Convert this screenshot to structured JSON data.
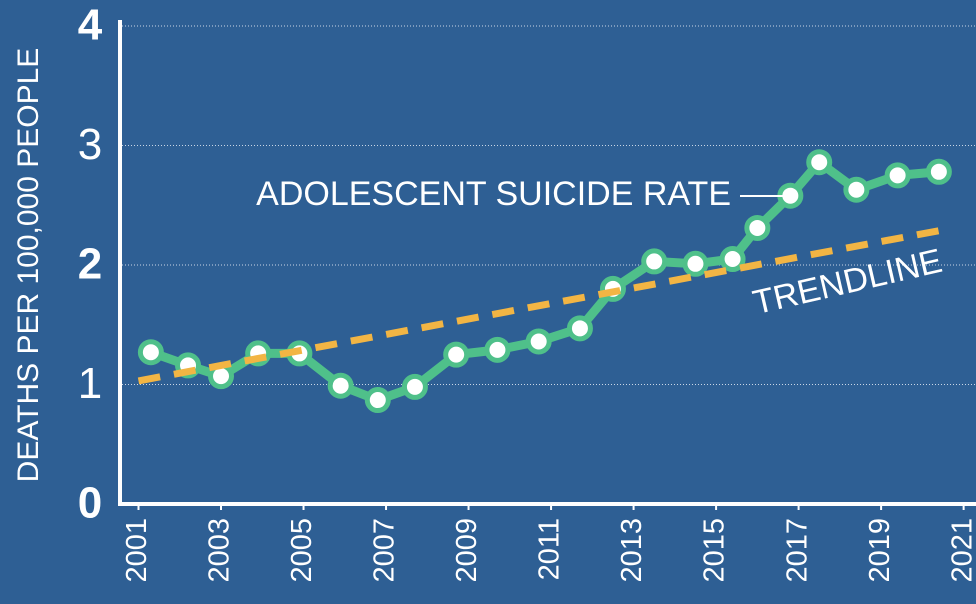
{
  "chart_data": {
    "type": "line",
    "y_label": "DEATHS PER 100,000 PEOPLE",
    "xlim": [
      2000.6,
      2021.3
    ],
    "xticks": [
      2001,
      2003,
      2005,
      2007,
      2009,
      2011,
      2013,
      2015,
      2017,
      2019,
      2021
    ],
    "ylim": [
      0,
      4
    ],
    "yticks": [
      0,
      1,
      2,
      3,
      4
    ],
    "grid": true,
    "series": [
      {
        "name": "ADOLESCENT SUICIDE RATE",
        "color": "#4fc08a",
        "x": [
          2001.3,
          2002.2,
          2003.0,
          2003.9,
          2004.9,
          2005.9,
          2006.8,
          2007.7,
          2008.7,
          2009.7,
          2010.7,
          2011.7,
          2012.5,
          2013.5,
          2014.5,
          2015.4,
          2016.0,
          2016.8,
          2017.5,
          2018.4,
          2019.4,
          2020.4
        ],
        "values": [
          1.27,
          1.16,
          1.07,
          1.26,
          1.26,
          0.99,
          0.87,
          0.98,
          1.25,
          1.29,
          1.36,
          1.47,
          1.8,
          2.03,
          2.01,
          2.05,
          2.31,
          2.58,
          2.86,
          2.63,
          2.75,
          2.78
        ]
      },
      {
        "name": "TRENDLINE",
        "color": "#f2b544",
        "dashed": true,
        "x": [
          2001.0,
          2020.6
        ],
        "values": [
          1.03,
          2.3
        ]
      }
    ]
  }
}
